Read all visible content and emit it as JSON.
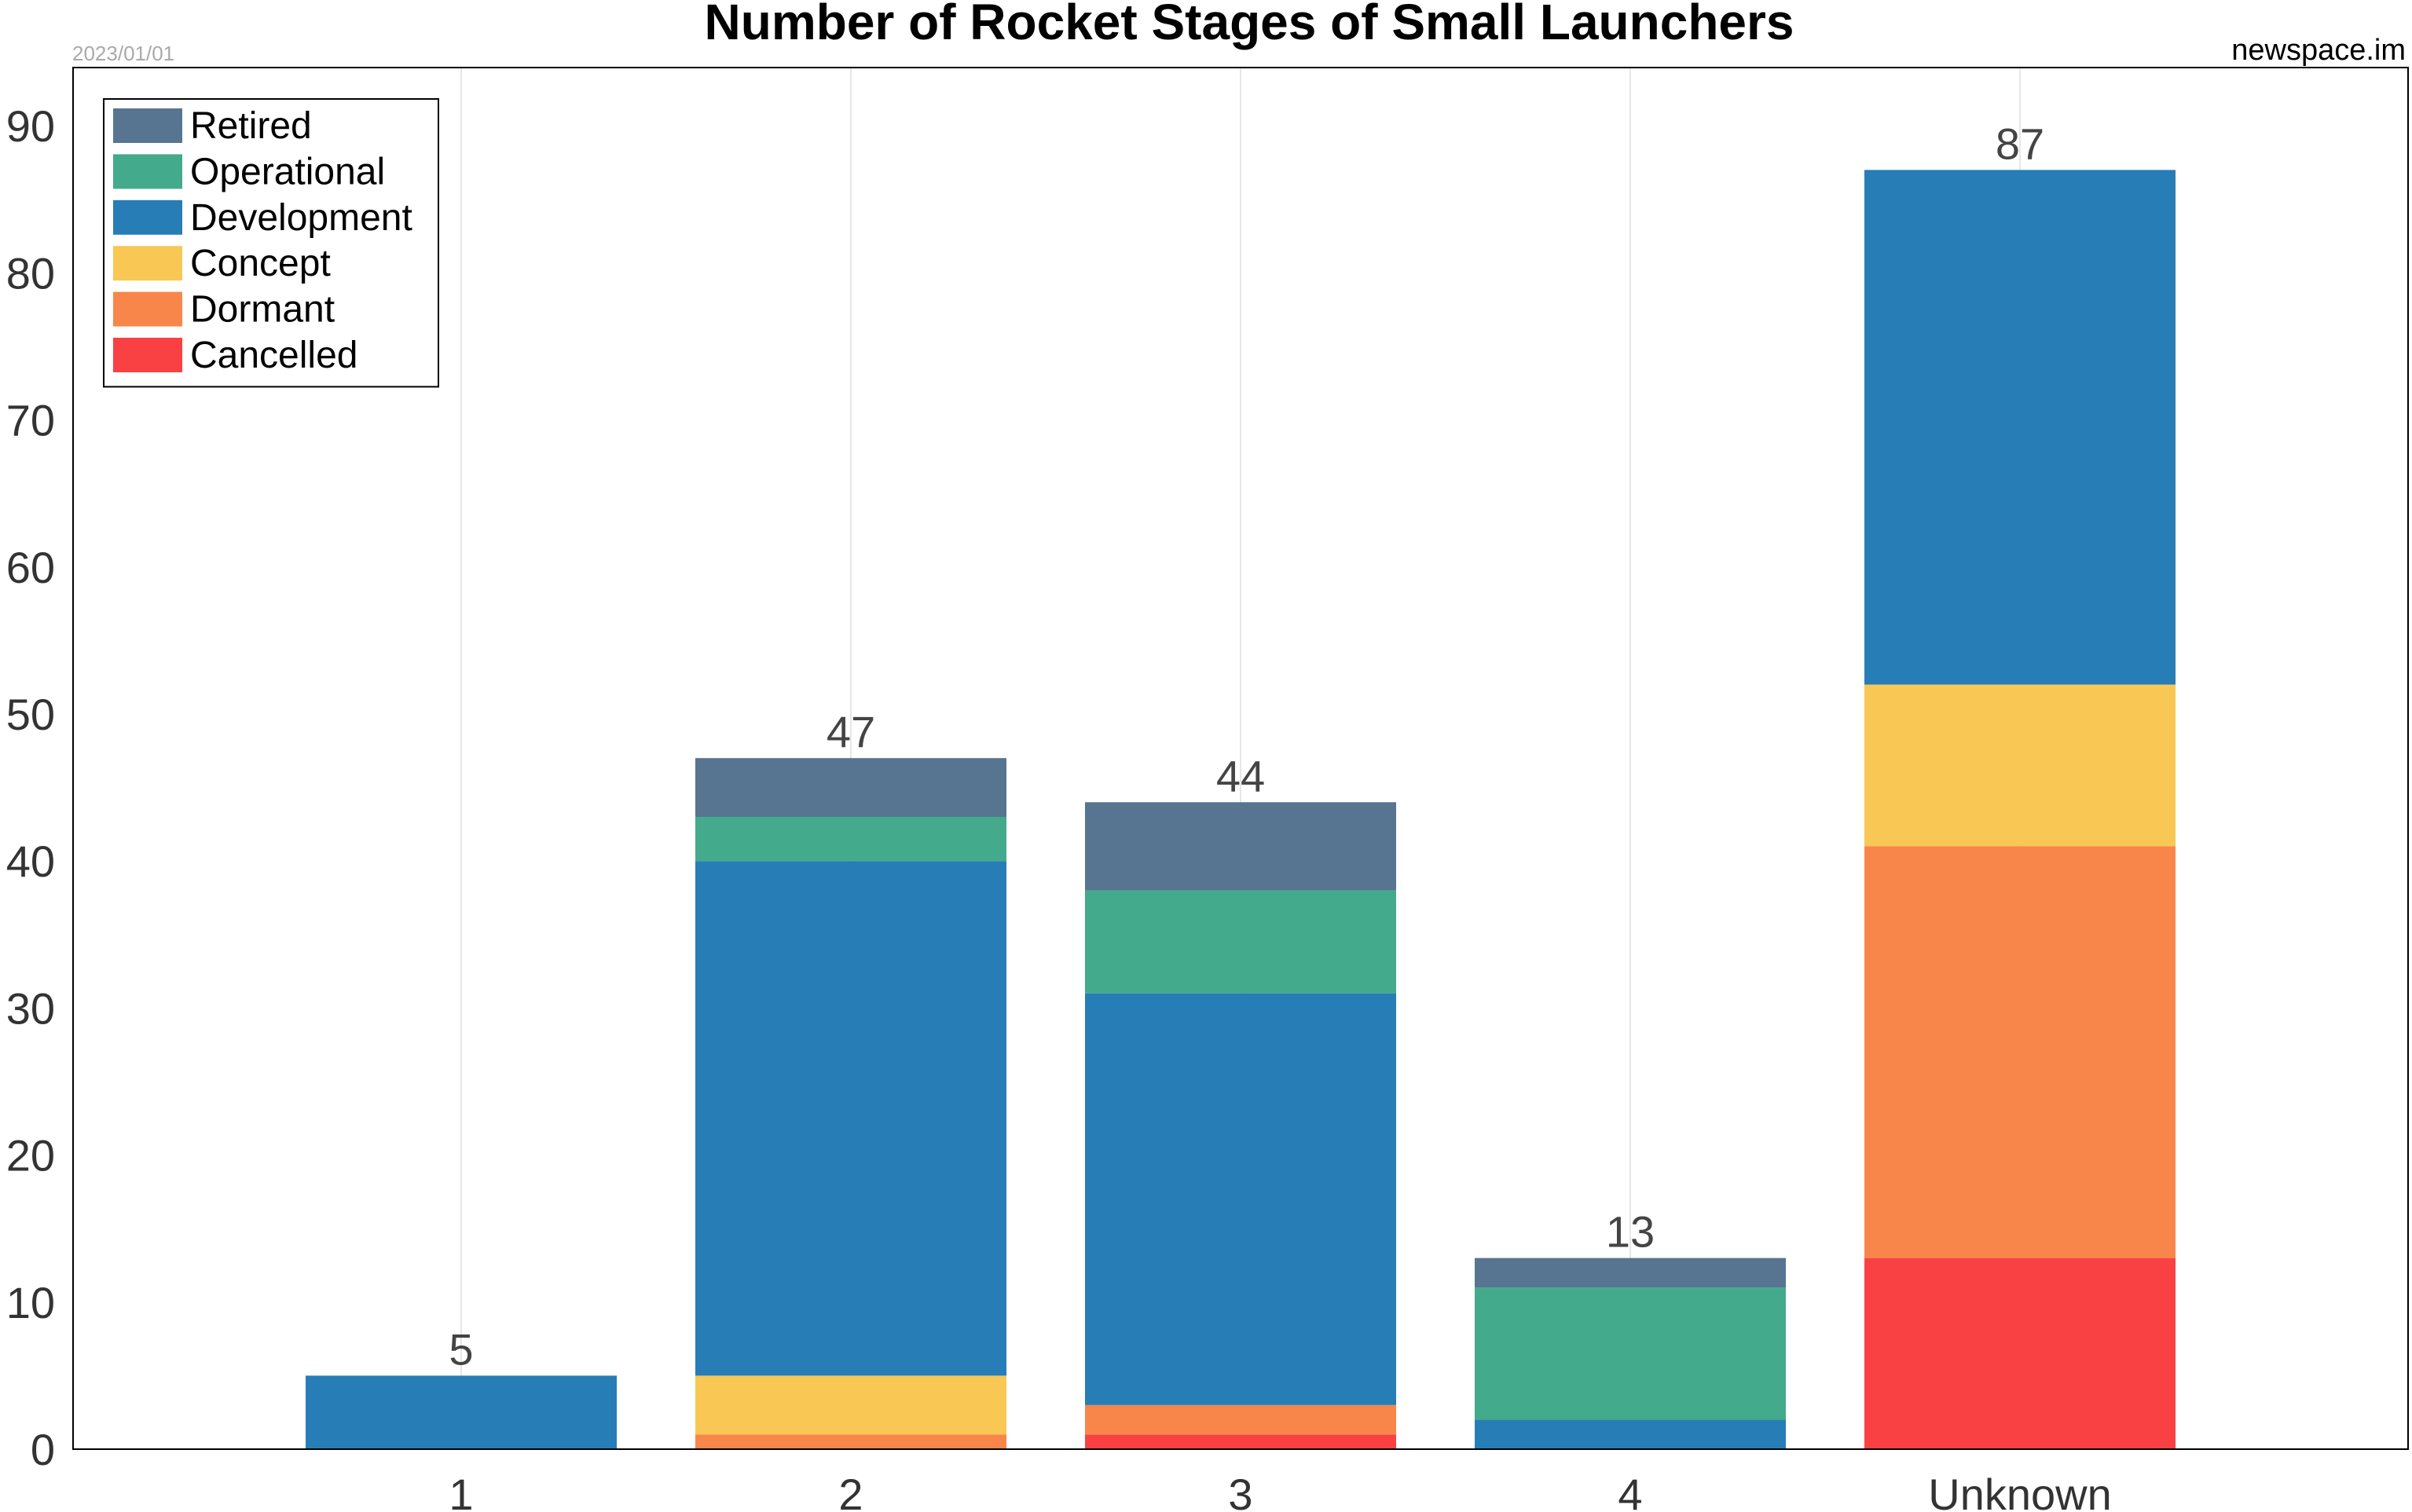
{
  "header": {
    "date": "2023/01/01",
    "source": "newspace.im"
  },
  "chart_data": {
    "type": "bar",
    "stacked": true,
    "title": "Number of Rocket Stages of Small Launchers",
    "xlabel": "",
    "ylabel": "",
    "categories": [
      "1",
      "2",
      "3",
      "4",
      "Unknown"
    ],
    "ylim": [
      0,
      93
    ],
    "yticks": [
      0,
      10,
      20,
      30,
      40,
      50,
      60,
      70,
      80,
      90
    ],
    "grid": "vertical",
    "legend_position": "top-left",
    "series": [
      {
        "name": "Cancelled",
        "color": "#f94144",
        "values": [
          0,
          0,
          1,
          0,
          13
        ]
      },
      {
        "name": "Dormant",
        "color": "#f8864a",
        "values": [
          0,
          1,
          2,
          0,
          28
        ]
      },
      {
        "name": "Concept",
        "color": "#f8c754",
        "values": [
          0,
          4,
          0,
          0,
          11
        ]
      },
      {
        "name": "Development",
        "color": "#277db6",
        "values": [
          5,
          35,
          28,
          2,
          35
        ]
      },
      {
        "name": "Operational",
        "color": "#43aa8b",
        "values": [
          0,
          3,
          7,
          9,
          0
        ]
      },
      {
        "name": "Retired",
        "color": "#577590",
        "values": [
          0,
          4,
          6,
          2,
          0
        ]
      }
    ],
    "legend_order": [
      "Retired",
      "Operational",
      "Development",
      "Concept",
      "Dormant",
      "Cancelled"
    ],
    "totals": [
      5,
      47,
      44,
      13,
      87
    ]
  }
}
